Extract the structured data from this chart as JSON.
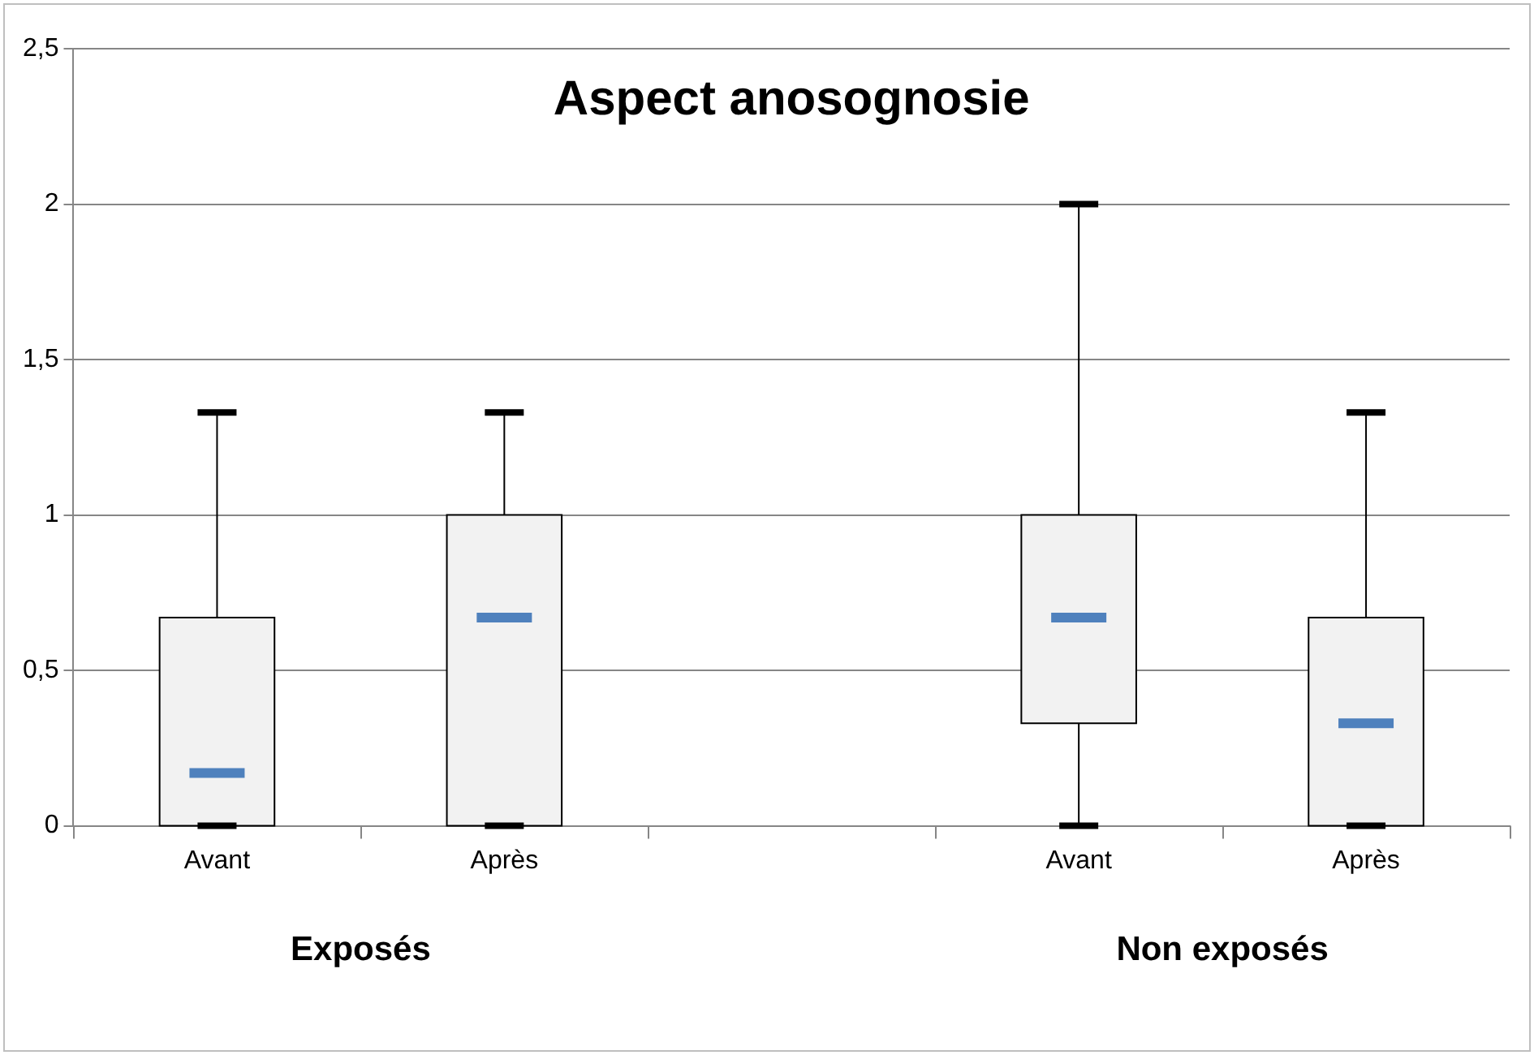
{
  "chart_data": {
    "type": "box",
    "title": "Aspect anosognosie",
    "categories": [
      "Avant",
      "Après",
      null,
      "Avant",
      "Après"
    ],
    "boxes": [
      {
        "low": 0,
        "q1": 0,
        "median": 0.17,
        "q3": 0.67,
        "high": 1.33
      },
      {
        "low": 0,
        "q1": 0,
        "median": 0.67,
        "q3": 1,
        "high": 1.33
      },
      null,
      {
        "low": 0,
        "q1": 0.33,
        "median": 0.67,
        "q3": 1,
        "high": 2
      },
      {
        "low": 0,
        "q1": 0,
        "median": 0.33,
        "q3": 0.67,
        "high": 1.33
      }
    ],
    "color": "#f2f2f2",
    "ylim": [
      0,
      2.5
    ],
    "yticks": [
      0,
      {
        "value": 0.5,
        "label": "0,5"
      },
      1,
      {
        "value": 1.5,
        "label": "1,5"
      },
      2,
      {
        "value": 2.5,
        "label": "2,5"
      }
    ],
    "grid": "y",
    "legend": false,
    "annotations": [
      "Exposés",
      "Non exposés"
    ]
  }
}
